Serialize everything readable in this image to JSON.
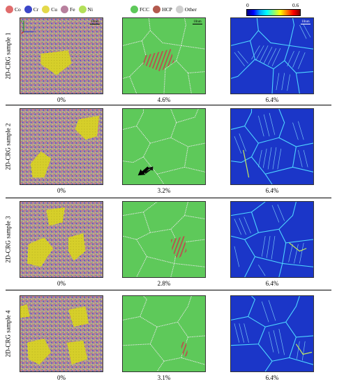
{
  "legend_elements": [
    {
      "label": "Co",
      "color": "#e06c6c"
    },
    {
      "label": "Cr",
      "color": "#3b46c8"
    },
    {
      "label": "Cu",
      "color": "#e4d94a"
    },
    {
      "label": "Fe",
      "color": "#b8809e"
    },
    {
      "label": "Ni",
      "color": "#b3e05a"
    }
  ],
  "legend_structures": [
    {
      "label": "FCC",
      "color": "#5ec95a"
    },
    {
      "label": "HCP",
      "color": "#b35a4e"
    },
    {
      "label": "Other",
      "color": "#cfcfcf"
    }
  ],
  "colorbar": {
    "min": "0",
    "max": "0.6"
  },
  "scale_bar": "10nm",
  "axes": {
    "x": "X",
    "y": "Y",
    "z": "Z"
  },
  "rows": [
    {
      "label": "2D-CRG sample 1",
      "strain_element": "0%",
      "strain_structure": "4.6%",
      "strain_map": "6.4%"
    },
    {
      "label": "2D-CRG sample 2",
      "strain_element": "0%",
      "strain_structure": "3.2%",
      "strain_map": "6.4%"
    },
    {
      "label": "2D-CRG sample 3",
      "strain_element": "0%",
      "strain_structure": "2.8%",
      "strain_map": "6.4%"
    },
    {
      "label": "2D-CRG sample 4",
      "strain_element": "0%",
      "strain_structure": "3.1%",
      "strain_map": "6.4%"
    }
  ]
}
